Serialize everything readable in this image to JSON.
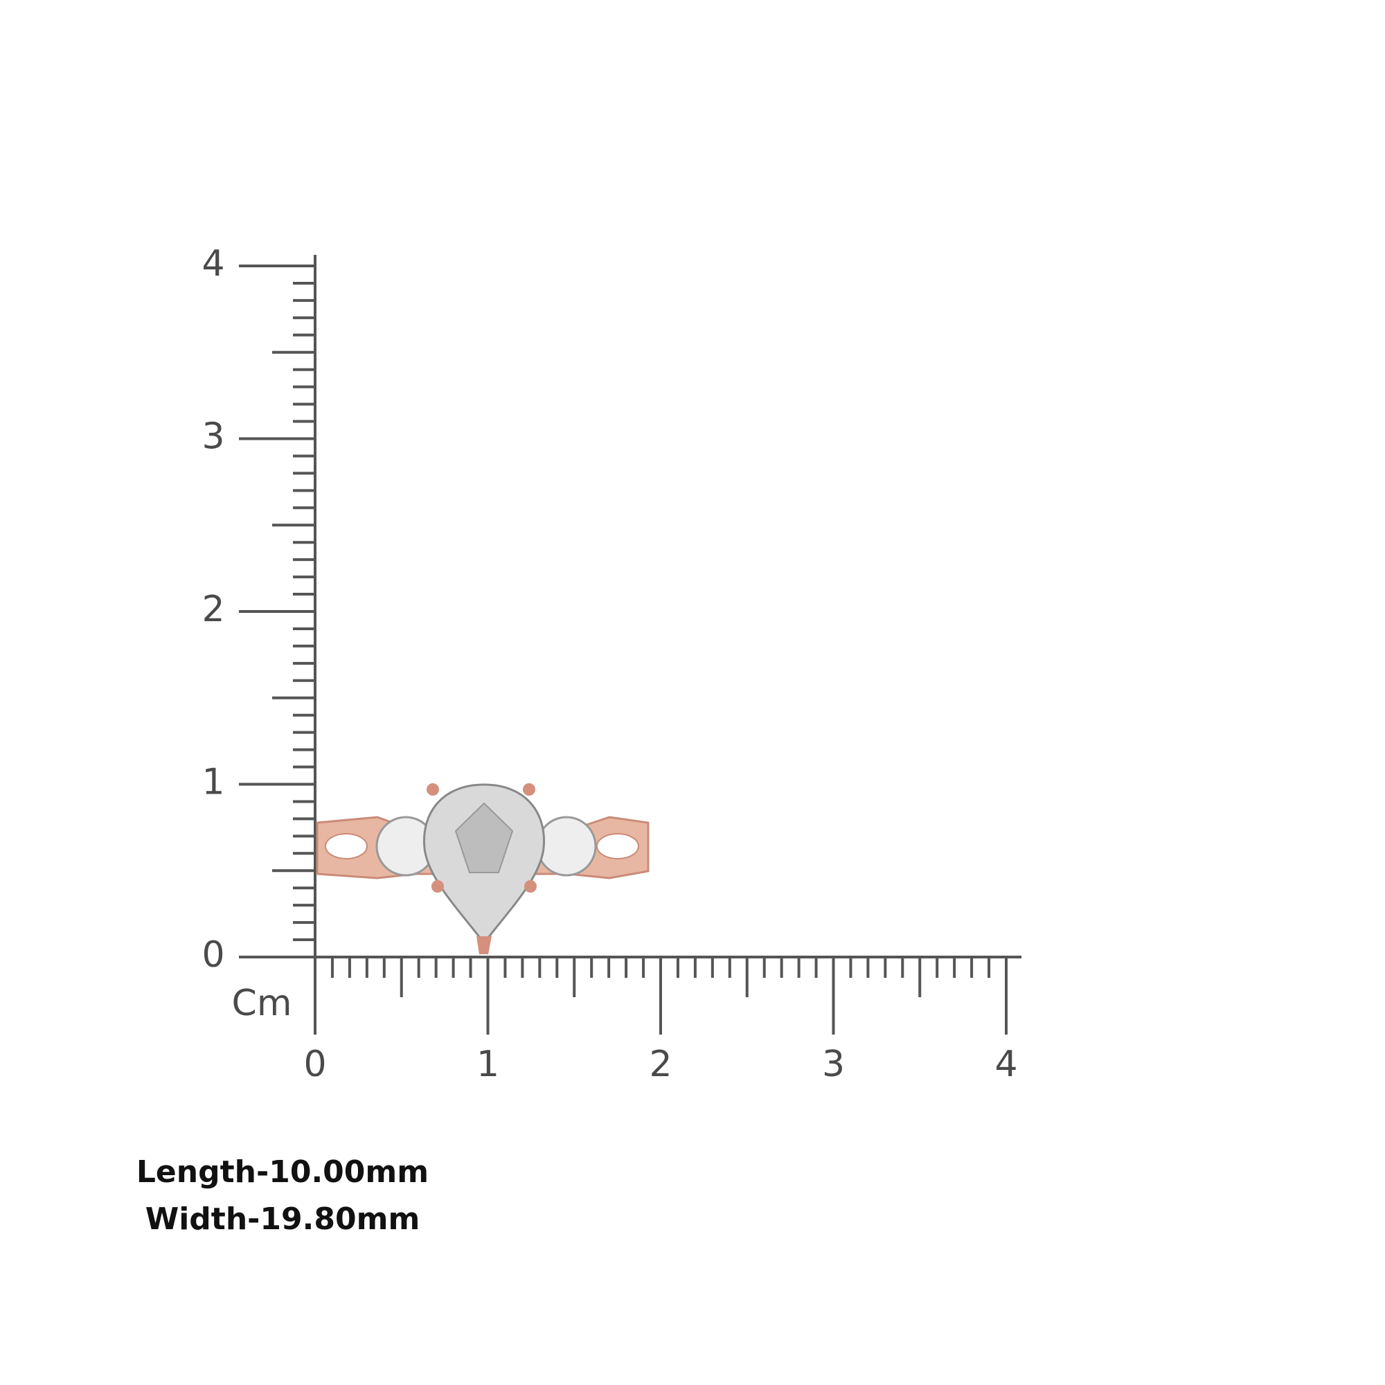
{
  "ruler": {
    "vertical_labels": [
      0,
      1,
      2,
      3,
      4
    ],
    "horizontal_labels": [
      0,
      1,
      2,
      3,
      4
    ],
    "unit": "Cm"
  },
  "dimensions": {
    "length": "Length-10.00mm",
    "width": "Width-19.80mm"
  }
}
